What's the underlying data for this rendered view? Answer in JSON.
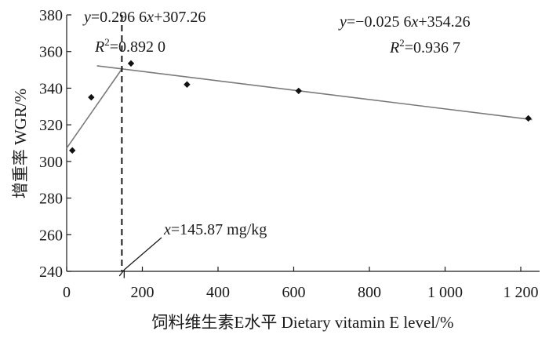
{
  "chart_data": {
    "type": "scatter",
    "xlabel": "饲料维生素E水平 Dietary vitamin E level/%",
    "ylabel": "增重率 WGR/%",
    "xlim": [
      0,
      1250
    ],
    "ylim": [
      240,
      380
    ],
    "x_ticks": [
      0,
      200,
      400,
      600,
      800,
      1000,
      1200
    ],
    "x_tick_labels": [
      "0",
      "200",
      "400",
      "600",
      "800",
      "1 000",
      "1 200"
    ],
    "y_ticks": [
      240,
      260,
      280,
      300,
      320,
      340,
      360,
      380
    ],
    "y_tick_labels": [
      "240",
      "260",
      "280",
      "300",
      "320",
      "340",
      "360",
      "380"
    ],
    "grid": false,
    "points": [
      {
        "x": 15,
        "y": 306
      },
      {
        "x": 65,
        "y": 335
      },
      {
        "x": 170,
        "y": 353.5
      },
      {
        "x": 318,
        "y": 342
      },
      {
        "x": 613,
        "y": 338.5
      },
      {
        "x": 1220,
        "y": 323.5
      }
    ],
    "lines": [
      {
        "x": [
          0,
          148
        ],
        "y": [
          307.26,
          351.1
        ]
      },
      {
        "x": [
          80,
          1230
        ],
        "y": [
          352.2,
          322.8
        ]
      }
    ],
    "breakpoint": {
      "x": 145.87,
      "label": "x=145.87 mg/kg"
    },
    "annotations": {
      "eq1": {
        "y": "y",
        "eq": "=0.296 6",
        "x": "x",
        "rest": "+307.26"
      },
      "r2_1": {
        "R": "R",
        "sup": "2",
        "val": "=0.892 0"
      },
      "eq2": {
        "y": "y",
        "eq": "=−0.025 6",
        "x": "x",
        "rest": "+354.26"
      },
      "r2_2": {
        "R": "R",
        "sup": "2",
        "val": "=0.936 7"
      },
      "bp": {
        "x": "x",
        "val": "=145.87 mg/kg"
      }
    }
  }
}
